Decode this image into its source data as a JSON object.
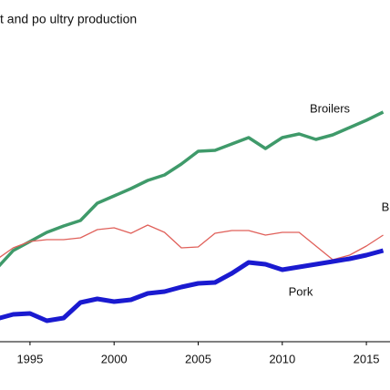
{
  "chart_data": {
    "type": "line",
    "title": "t and po ultry production",
    "x": [
      1993,
      1994,
      1995,
      1996,
      1997,
      1998,
      1999,
      2000,
      2001,
      2002,
      2003,
      2004,
      2005,
      2006,
      2007,
      2008,
      2009,
      2010,
      2011,
      2012,
      2013,
      2014,
      2015,
      2016
    ],
    "series": [
      {
        "name": "Broilers",
        "color": "#3f9a6a",
        "width": 3.5,
        "values": [
          80,
          100,
          110,
          120,
          127,
          133,
          152,
          160,
          168,
          177,
          183,
          195,
          209,
          210,
          217,
          224,
          212,
          224,
          228,
          222,
          227,
          235,
          243,
          252
        ]
      },
      {
        "name": "B",
        "color": "#e0605a",
        "width": 1.3,
        "values": [
          90,
          103,
          110,
          112,
          112,
          114,
          123,
          125,
          119,
          128,
          120,
          103,
          104,
          119,
          122,
          122,
          117,
          120,
          120,
          105,
          90,
          95,
          105,
          117
        ]
      },
      {
        "name": "Pork",
        "color": "#1a1ad0",
        "width": 5,
        "values": [
          25,
          30,
          31,
          23,
          26,
          43,
          47,
          44,
          46,
          53,
          55,
          60,
          64,
          65,
          75,
          87,
          85,
          79,
          82,
          85,
          88,
          91,
          95,
          100
        ]
      }
    ],
    "xlim": [
      1993,
      2017
    ],
    "ylim": [
      0,
      375
    ],
    "xticks": [
      1995,
      2000,
      2005,
      2010,
      2015
    ]
  }
}
